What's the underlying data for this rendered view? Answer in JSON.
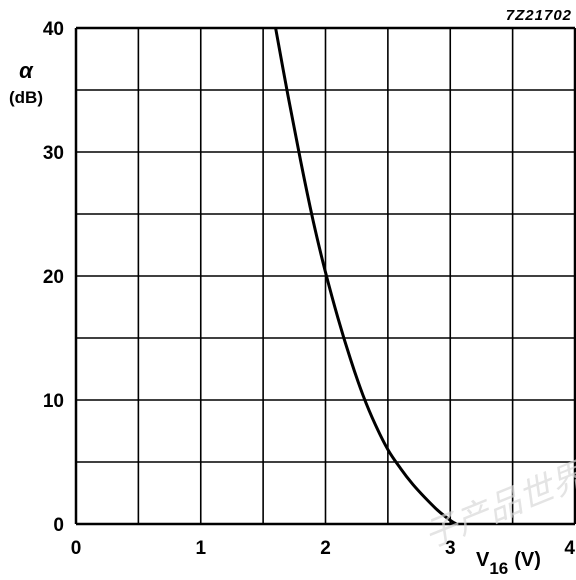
{
  "chart_data": {
    "type": "line",
    "figure_code": "7Z21702",
    "ylabel_symbol": "α",
    "ylabel_unit": "(dB)",
    "xlabel_main": "V",
    "xlabel_sub": "16",
    "xlabel_unit": "(V)",
    "xlim": [
      0,
      4
    ],
    "ylim": [
      0,
      40
    ],
    "x_ticks": [
      0,
      1,
      2,
      3,
      4
    ],
    "y_ticks": [
      0,
      10,
      20,
      30,
      40
    ],
    "x_grid": [
      0,
      0.5,
      1,
      1.5,
      2,
      2.5,
      3,
      3.5,
      4
    ],
    "y_grid": [
      0,
      5,
      10,
      15,
      20,
      25,
      30,
      35,
      40
    ],
    "grid": true,
    "series": [
      {
        "x": [
          1.6,
          1.7,
          1.8,
          1.9,
          2.0,
          2.1,
          2.2,
          2.3,
          2.4,
          2.5,
          2.6,
          2.7,
          2.8,
          2.9,
          3.0,
          3.05
        ],
        "y": [
          40,
          34.5,
          29.3,
          24.5,
          20.3,
          16.6,
          13.3,
          10.4,
          8.0,
          6.0,
          4.5,
          3.2,
          2.1,
          1.1,
          0.3,
          0
        ]
      }
    ]
  },
  "watermark": "子产品世界"
}
